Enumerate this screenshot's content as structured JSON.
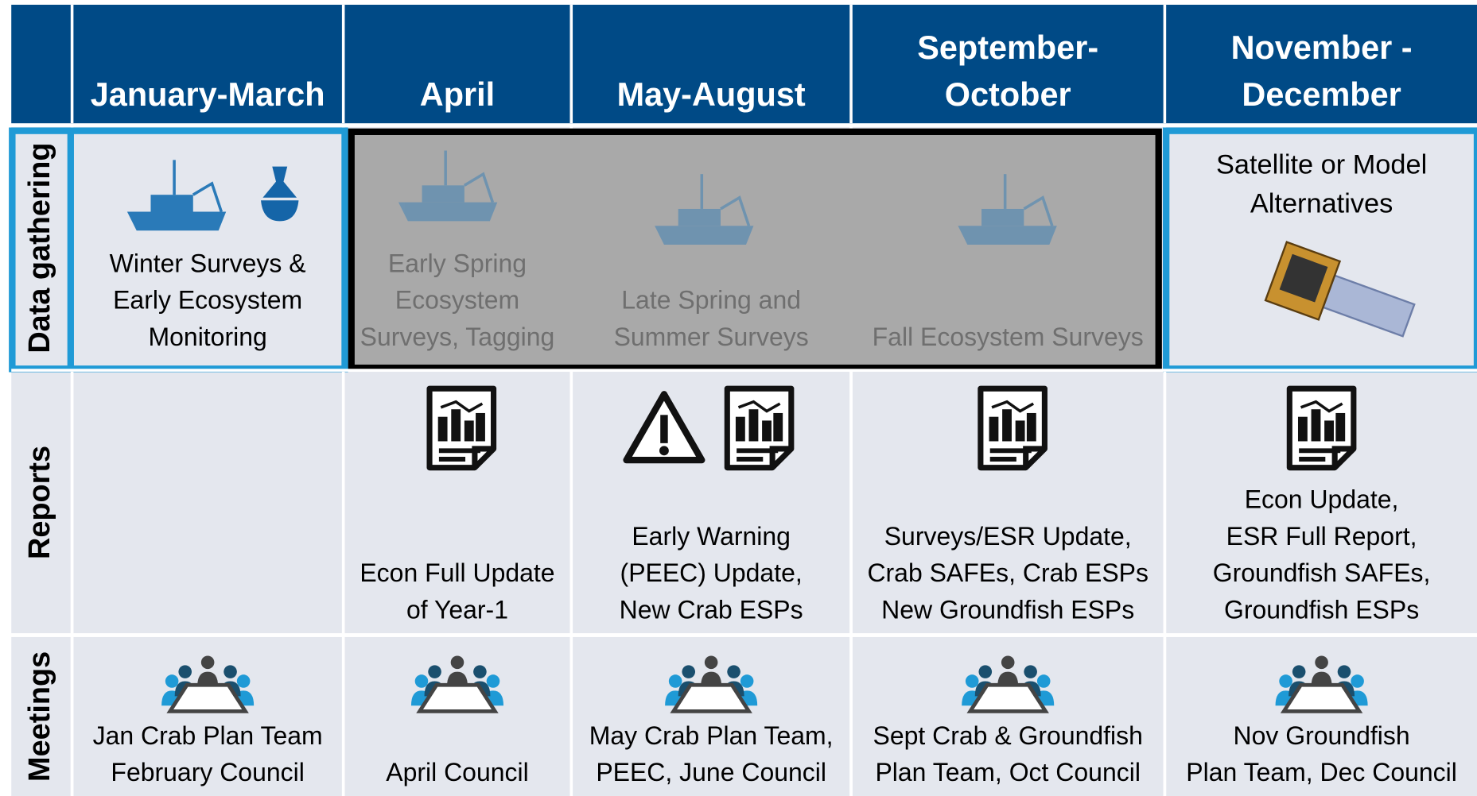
{
  "header": {
    "columns": [
      {
        "lines": [
          "January-March"
        ]
      },
      {
        "lines": [
          "April"
        ]
      },
      {
        "lines": [
          "May-August"
        ]
      },
      {
        "lines": [
          "September-",
          "October"
        ]
      },
      {
        "lines": [
          "November -",
          "December"
        ]
      }
    ]
  },
  "rows": [
    {
      "label": "Data gathering",
      "cells": [
        [
          "Winter Surveys &",
          "Early Ecosystem",
          "Monitoring"
        ],
        [
          "Early Spring",
          "Ecosystem",
          "Surveys, Tagging"
        ],
        [
          "Late Spring and",
          "Summer Surveys"
        ],
        [
          "Fall Ecosystem Surveys"
        ],
        [
          "Satellite or Model",
          "Alternatives"
        ]
      ]
    },
    {
      "label": "Reports",
      "cells": [
        [],
        [
          "Econ Full Update",
          "of Year-1"
        ],
        [
          "Early Warning",
          "(PEEC) Update,",
          "New Crab ESPs"
        ],
        [
          "Surveys/ESR Update,",
          "Crab SAFEs, Crab ESPs",
          "New Groundfish ESPs"
        ],
        [
          "Econ Update,",
          "ESR Full Report,",
          "Groundfish SAFEs,",
          "Groundfish ESPs"
        ]
      ]
    },
    {
      "label": "Meetings",
      "cells": [
        [
          "Jan Crab Plan Team",
          "February Council"
        ],
        [
          "April Council"
        ],
        [
          "May Crab Plan Team,",
          "PEEC, June Council"
        ],
        [
          "Sept Crab & Groundfish",
          "Plan Team, Oct Council"
        ],
        [
          "Nov Groundfish",
          "Plan Team, Dec Council"
        ]
      ]
    }
  ]
}
